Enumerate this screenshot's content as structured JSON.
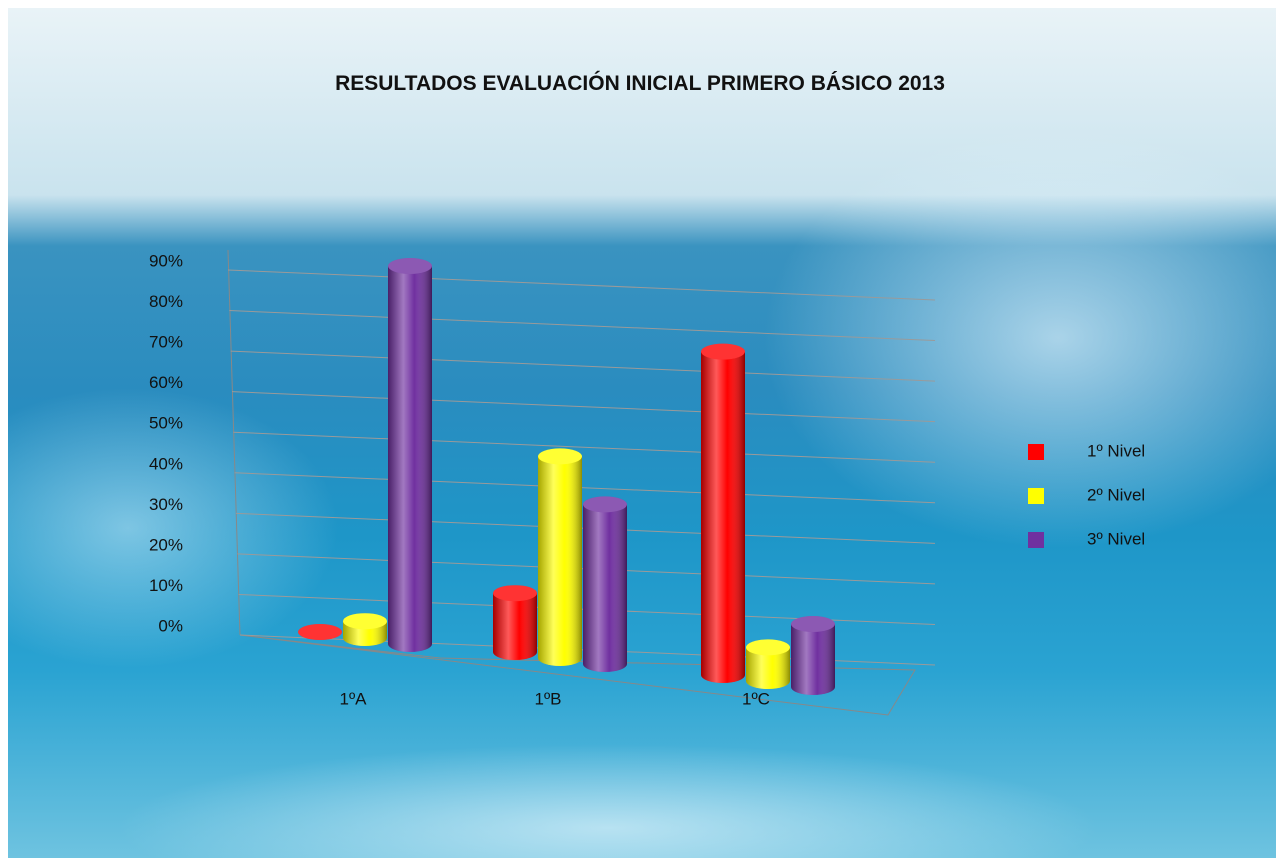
{
  "chart_data": {
    "type": "bar3d",
    "title": "RESULTADOS EVALUACIÓN INICIAL PRIMERO BÁSICO 2013",
    "categories": [
      "1ºA",
      "1ºB",
      "1ºC"
    ],
    "series": [
      {
        "name": "1º Nivel",
        "color": "#ff0000",
        "values": [
          0,
          14,
          77
        ]
      },
      {
        "name": "2º Nivel",
        "color": "#ffff00",
        "values": [
          4,
          48,
          8
        ]
      },
      {
        "name": "3º Nivel",
        "color": "#7030a0",
        "values": [
          90,
          38,
          15
        ]
      }
    ],
    "ylim": [
      0,
      90
    ],
    "yticks": [
      {
        "value": 0,
        "label": "0%"
      },
      {
        "value": 10,
        "label": "10%"
      },
      {
        "value": 20,
        "label": "20%"
      },
      {
        "value": 30,
        "label": "30%"
      },
      {
        "value": 40,
        "label": "40%"
      },
      {
        "value": 50,
        "label": "50%"
      },
      {
        "value": 60,
        "label": "60%"
      },
      {
        "value": 70,
        "label": "70%"
      },
      {
        "value": 80,
        "label": "80%"
      },
      {
        "value": 90,
        "label": "90%"
      }
    ],
    "grid": true,
    "legend": "right"
  }
}
